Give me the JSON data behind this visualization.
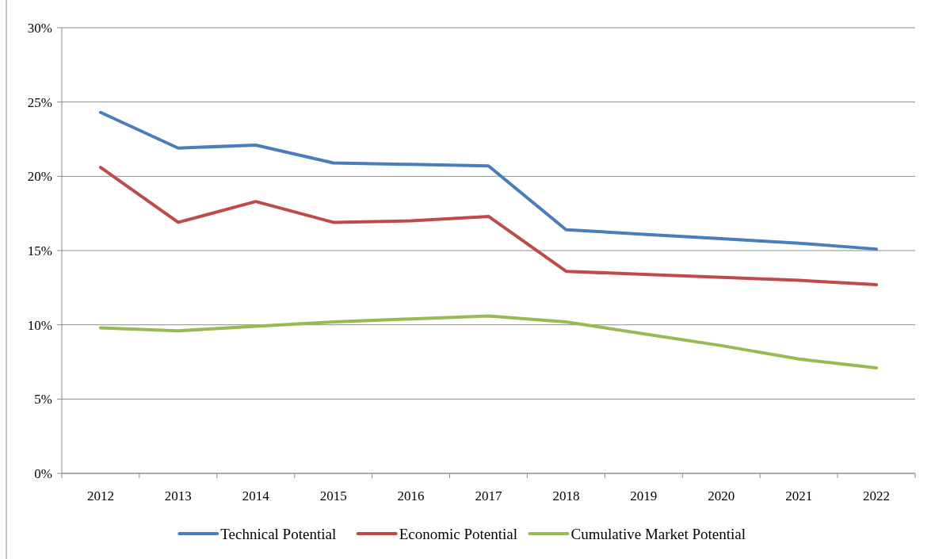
{
  "chart_data": {
    "type": "line",
    "categories": [
      "2012",
      "2013",
      "2014",
      "2015",
      "2016",
      "2017",
      "2018",
      "2019",
      "2020",
      "2021",
      "2022"
    ],
    "series": [
      {
        "name": "Technical Potential",
        "color": "#4a7ebb",
        "values": [
          24.3,
          21.9,
          22.1,
          20.9,
          20.8,
          20.7,
          16.4,
          16.1,
          15.8,
          15.5,
          15.1
        ]
      },
      {
        "name": "Economic Potential",
        "color": "#be4b48",
        "values": [
          20.6,
          16.9,
          18.3,
          16.9,
          17.0,
          17.3,
          13.6,
          13.4,
          13.2,
          13.0,
          12.7
        ]
      },
      {
        "name": "Cumulative Market Potential",
        "color": "#98b954",
        "values": [
          9.8,
          9.6,
          9.9,
          10.2,
          10.4,
          10.6,
          10.2,
          9.4,
          8.6,
          7.7,
          7.1
        ]
      }
    ],
    "ylim": [
      0,
      30
    ],
    "yticks": [
      {
        "value": 0,
        "label": "0%"
      },
      {
        "value": 5,
        "label": "5%"
      },
      {
        "value": 10,
        "label": "10%"
      },
      {
        "value": 15,
        "label": "15%"
      },
      {
        "value": 20,
        "label": "20%"
      },
      {
        "value": 25,
        "label": "25%"
      },
      {
        "value": 30,
        "label": "30%"
      }
    ],
    "grid": "y",
    "legend": "bottom",
    "marker": "none",
    "line_style": "solid"
  }
}
